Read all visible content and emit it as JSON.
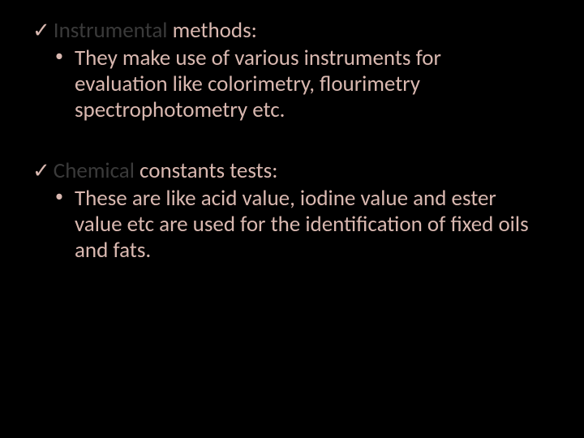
{
  "background_color": "#000000",
  "text_color_light": "#d9b8b0",
  "text_color_dark": "#3a3a3a",
  "checkmark_glyph": "✓",
  "bullet_glyph": "•",
  "font_family": "Calibri",
  "heading_fontsize": 27,
  "body_fontsize": 27,
  "sections": [
    {
      "heading_dark": "Instrumental",
      "heading_light": " methods:",
      "body": "They make use of various instruments for evaluation like colorimetry, flourimetry spectrophotometry etc."
    },
    {
      "heading_dark": "Chemical",
      "heading_light": " constants tests:",
      "body": "These are like acid value, iodine value and ester value etc are used for the identification of fixed oils and fats."
    }
  ]
}
